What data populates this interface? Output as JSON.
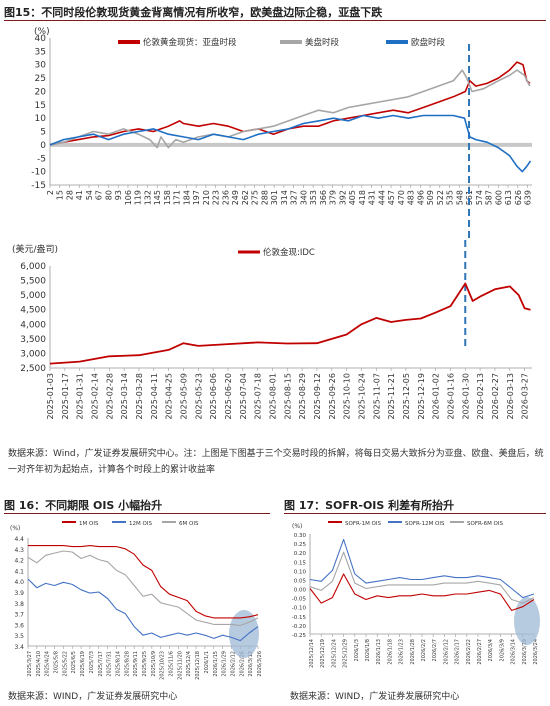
{
  "figure15": {
    "title": "图15：不同时段伦敦现货黄金背离情况有所收窄，欧美盘边际企稳，亚盘下跌",
    "source_line1": "数据来源：Wind，广发证券发展研究中心。注：上图是下图基于三个交易时段的拆解，将每日交易大致拆分为亚盘、欧盘、美盘后，统",
    "source_line2": "一对齐年初为起始点，计算各个时段上的累计收益率"
  },
  "figure16": {
    "title": "图 16：不同期限 OIS 小幅抬升",
    "source": "数据来源：WIND，广发证券发展研究中心"
  },
  "figure17": {
    "title": "图 17：SOFR-OIS 利差有所抬升",
    "source": "数据来源：WIND，广发证券发展研究中心"
  },
  "chart_data": [
    {
      "id": "cumulative-returns",
      "type": "line",
      "ylabel": "(%)",
      "ylim": [
        -15,
        40
      ],
      "yticks": [
        -15,
        -10,
        -5,
        0,
        5,
        10,
        15,
        20,
        25,
        30,
        35,
        40
      ],
      "x_ticks": [
        "2",
        "15",
        "28",
        "41",
        "54",
        "67",
        "80",
        "93",
        "106",
        "119",
        "132",
        "145",
        "158",
        "171",
        "184",
        "197",
        "210",
        "223",
        "236",
        "249",
        "262",
        "275",
        "288",
        "301",
        "314",
        "327",
        "340",
        "353",
        "366",
        "379",
        "392",
        "405",
        "418",
        "431",
        "444",
        "457",
        "470",
        "483",
        "496",
        "509",
        "522",
        "535",
        "548",
        "561",
        "574",
        "587",
        "600",
        "613",
        "626",
        "639"
      ],
      "x_range": [
        2,
        645
      ],
      "vline_x": 561,
      "legend": [
        "伦敦黄金现货：亚盘时段",
        "美盘时段",
        "欧盘时段"
      ],
      "series": [
        {
          "name": "伦敦黄金现货：亚盘时段",
          "color": "#c00000",
          "points": [
            [
              2,
              0
            ],
            [
              20,
              1
            ],
            [
              40,
              2
            ],
            [
              60,
              3
            ],
            [
              80,
              3.5
            ],
            [
              100,
              5
            ],
            [
              120,
              6
            ],
            [
              140,
              5
            ],
            [
              160,
              7
            ],
            [
              175,
              9
            ],
            [
              180,
              8
            ],
            [
              200,
              7
            ],
            [
              220,
              8
            ],
            [
              240,
              7
            ],
            [
              260,
              5
            ],
            [
              280,
              6
            ],
            [
              300,
              4
            ],
            [
              320,
              6
            ],
            [
              340,
              7
            ],
            [
              360,
              7
            ],
            [
              380,
              9
            ],
            [
              400,
              10
            ],
            [
              420,
              11
            ],
            [
              440,
              12
            ],
            [
              460,
              13
            ],
            [
              480,
              12
            ],
            [
              500,
              14
            ],
            [
              520,
              16
            ],
            [
              540,
              18
            ],
            [
              556,
              20
            ],
            [
              562,
              24
            ],
            [
              570,
              22
            ],
            [
              585,
              23
            ],
            [
              600,
              25
            ],
            [
              615,
              28
            ],
            [
              625,
              31
            ],
            [
              633,
              30
            ],
            [
              638,
              24
            ],
            [
              642,
              23
            ]
          ]
        },
        {
          "name": "美盘时段",
          "color": "#a6a6a6",
          "points": [
            [
              2,
              0
            ],
            [
              20,
              1
            ],
            [
              40,
              3
            ],
            [
              60,
              5
            ],
            [
              80,
              4
            ],
            [
              100,
              6
            ],
            [
              120,
              4
            ],
            [
              135,
              2
            ],
            [
              145,
              -1
            ],
            [
              150,
              3
            ],
            [
              160,
              -1
            ],
            [
              170,
              2
            ],
            [
              180,
              1
            ],
            [
              200,
              3
            ],
            [
              220,
              4
            ],
            [
              240,
              3
            ],
            [
              260,
              5
            ],
            [
              280,
              6
            ],
            [
              300,
              7
            ],
            [
              320,
              9
            ],
            [
              340,
              11
            ],
            [
              360,
              13
            ],
            [
              380,
              12
            ],
            [
              400,
              14
            ],
            [
              420,
              15
            ],
            [
              440,
              16
            ],
            [
              460,
              17
            ],
            [
              480,
              18
            ],
            [
              500,
              20
            ],
            [
              520,
              22
            ],
            [
              540,
              24
            ],
            [
              552,
              28
            ],
            [
              558,
              25
            ],
            [
              565,
              20
            ],
            [
              580,
              21
            ],
            [
              600,
              24
            ],
            [
              615,
              26
            ],
            [
              625,
              28
            ],
            [
              635,
              26
            ],
            [
              642,
              22
            ]
          ]
        },
        {
          "name": "欧盘时段",
          "color": "#1f6fc4",
          "points": [
            [
              2,
              0
            ],
            [
              20,
              2
            ],
            [
              40,
              3
            ],
            [
              60,
              4
            ],
            [
              80,
              2
            ],
            [
              100,
              4
            ],
            [
              120,
              5
            ],
            [
              140,
              6
            ],
            [
              160,
              4
            ],
            [
              180,
              3
            ],
            [
              200,
              2
            ],
            [
              220,
              4
            ],
            [
              240,
              3
            ],
            [
              260,
              2
            ],
            [
              280,
              4
            ],
            [
              300,
              5
            ],
            [
              320,
              6
            ],
            [
              340,
              8
            ],
            [
              360,
              9
            ],
            [
              380,
              10
            ],
            [
              400,
              9
            ],
            [
              420,
              11
            ],
            [
              440,
              10
            ],
            [
              460,
              11
            ],
            [
              480,
              10
            ],
            [
              500,
              11
            ],
            [
              520,
              11
            ],
            [
              540,
              11
            ],
            [
              555,
              10
            ],
            [
              562,
              3
            ],
            [
              570,
              2
            ],
            [
              585,
              1
            ],
            [
              600,
              -1
            ],
            [
              615,
              -4
            ],
            [
              625,
              -8
            ],
            [
              632,
              -10
            ],
            [
              638,
              -8
            ],
            [
              643,
              -6
            ]
          ]
        }
      ]
    },
    {
      "id": "london-gold-idc",
      "type": "line",
      "ylabel": "(美元/盎司)",
      "ylim": [
        2500,
        6000
      ],
      "yticks": [
        2500,
        3000,
        3500,
        4000,
        4500,
        5000,
        5500,
        6000
      ],
      "x_ticks": [
        "2025-01-03",
        "2025-01-17",
        "2025-01-31",
        "2025-02-14",
        "2025-02-28",
        "2025-03-14",
        "2025-03-28",
        "2025-04-11",
        "2025-04-25",
        "2025-05-09",
        "2025-05-23",
        "2025-06-06",
        "2025-06-20",
        "2025-07-04",
        "2025-07-18",
        "2025-08-01",
        "2025-08-15",
        "2025-08-29",
        "2025-09-12",
        "2025-09-26",
        "2025-10-10",
        "2025-10-24",
        "2025-11-07",
        "2025-11-21",
        "2025-12-05",
        "2025-12-19",
        "2026-01-02",
        "2026-01-16",
        "2026-01-30",
        "2026-02-13",
        "2026-02-27",
        "2026-03-13",
        "2026-03-27"
      ],
      "x_range": [
        0,
        32.5
      ],
      "vline_x": 28,
      "legend": [
        "伦敦金现:IDC"
      ],
      "series": [
        {
          "name": "伦敦金现:IDC",
          "color": "#c00000",
          "points": [
            [
              0,
              2650
            ],
            [
              2,
              2720
            ],
            [
              4,
              2900
            ],
            [
              6,
              2940
            ],
            [
              8,
              3120
            ],
            [
              9,
              3350
            ],
            [
              10,
              3260
            ],
            [
              12,
              3320
            ],
            [
              14,
              3380
            ],
            [
              16,
              3340
            ],
            [
              18,
              3350
            ],
            [
              20,
              3650
            ],
            [
              21,
              4000
            ],
            [
              22,
              4220
            ],
            [
              23,
              4080
            ],
            [
              24,
              4150
            ],
            [
              25,
              4200
            ],
            [
              26,
              4400
            ],
            [
              27,
              4620
            ],
            [
              28,
              5400
            ],
            [
              28.5,
              4800
            ],
            [
              29,
              4950
            ],
            [
              30,
              5200
            ],
            [
              31,
              5300
            ],
            [
              31.6,
              5000
            ],
            [
              32,
              4550
            ],
            [
              32.4,
              4500
            ]
          ]
        }
      ]
    },
    {
      "id": "ois",
      "type": "line",
      "ylabel": "(%)",
      "ylim": [
        3.4,
        4.4
      ],
      "yticks": [
        3.4,
        3.5,
        3.6,
        3.7,
        3.8,
        3.9,
        4.0,
        4.1,
        4.2,
        4.3,
        4.4
      ],
      "x_ticks": [
        "2025/3/27",
        "2025/4/10",
        "2025/4/24",
        "2025/5/8",
        "2025/5/22",
        "2025/6/5",
        "2025/6/19",
        "2025/7/3",
        "2025/7/17",
        "2025/7/31",
        "2025/8/14",
        "2025/8/28",
        "2025/9/11",
        "2025/9/25",
        "2025/10/9",
        "2025/10/23",
        "2025/11/6",
        "2025/11/20",
        "2025/12/4",
        "2025/12/18",
        "2026/1/1",
        "2026/1/15",
        "2026/1/29",
        "2026/2/12",
        "2026/2/26",
        "2026/3/12",
        "2026/3/26"
      ],
      "legend": [
        "1M OIS",
        "12M OIS",
        "6M OIS"
      ],
      "series": [
        {
          "name": "1M OIS",
          "color": "#c00000",
          "values": [
            4.33,
            4.33,
            4.33,
            4.33,
            4.33,
            4.32,
            4.32,
            4.33,
            4.32,
            4.32,
            4.32,
            4.3,
            4.25,
            4.15,
            4.1,
            3.95,
            3.88,
            3.85,
            3.82,
            3.72,
            3.68,
            3.66,
            3.66,
            3.66,
            3.66,
            3.67,
            3.69
          ]
        },
        {
          "name": "12M OIS",
          "color": "#4472c4",
          "values": [
            4.02,
            3.94,
            3.98,
            3.96,
            3.99,
            3.97,
            3.92,
            3.89,
            3.9,
            3.84,
            3.74,
            3.7,
            3.58,
            3.5,
            3.52,
            3.48,
            3.5,
            3.52,
            3.5,
            3.52,
            3.5,
            3.47,
            3.5,
            3.48,
            3.45,
            3.52,
            3.58
          ]
        },
        {
          "name": "6M OIS",
          "color": "#a6a6a6",
          "values": [
            4.22,
            4.17,
            4.24,
            4.26,
            4.28,
            4.27,
            4.21,
            4.24,
            4.2,
            4.18,
            4.1,
            4.06,
            3.96,
            3.86,
            3.88,
            3.8,
            3.78,
            3.76,
            3.7,
            3.64,
            3.62,
            3.6,
            3.6,
            3.6,
            3.59,
            3.62,
            3.66
          ]
        }
      ]
    },
    {
      "id": "sofr-ois",
      "type": "line",
      "ylabel": "(%)",
      "ylim": [
        -0.25,
        0.3
      ],
      "yticks": [
        -0.25,
        -0.2,
        -0.15,
        -0.1,
        -0.05,
        0,
        0.05,
        0.1,
        0.15,
        0.2,
        0.25,
        0.3
      ],
      "x_ticks": [
        "2025/12/14",
        "2025/12/19",
        "2025/12/24",
        "2025/12/29",
        "2026/1/3",
        "2026/1/8",
        "2026/1/13",
        "2026/1/18",
        "2026/1/23",
        "2026/1/28",
        "2026/2/2",
        "2026/2/7",
        "2026/2/12",
        "2026/2/17",
        "2026/2/22",
        "2026/2/27",
        "2026/3/4",
        "2026/3/9",
        "2026/3/14",
        "2026/3/19",
        "2026/3/24"
      ],
      "legend": [
        "SOFR-1M OIS",
        "SOFR-12M OIS",
        "SOFR-6M OIS"
      ],
      "series": [
        {
          "name": "SOFR-1M OIS",
          "color": "#c00000",
          "values": [
            0.0,
            -0.08,
            -0.05,
            0.08,
            -0.03,
            -0.06,
            -0.04,
            -0.05,
            -0.04,
            -0.04,
            -0.03,
            -0.04,
            -0.04,
            -0.03,
            -0.03,
            -0.02,
            -0.01,
            -0.03,
            -0.12,
            -0.1,
            -0.06
          ]
        },
        {
          "name": "SOFR-12M OIS",
          "color": "#4472c4",
          "values": [
            0.05,
            0.04,
            0.1,
            0.27,
            0.08,
            0.03,
            0.04,
            0.05,
            0.06,
            0.05,
            0.05,
            0.06,
            0.07,
            0.06,
            0.06,
            0.07,
            0.06,
            0.05,
            0.0,
            -0.05,
            -0.03
          ]
        },
        {
          "name": "SOFR-6M OIS",
          "color": "#a6a6a6",
          "values": [
            0.01,
            -0.01,
            0.04,
            0.2,
            0.03,
            0.0,
            0.01,
            0.02,
            0.02,
            0.02,
            0.02,
            0.02,
            0.03,
            0.03,
            0.03,
            0.04,
            0.03,
            0.02,
            -0.06,
            -0.08,
            -0.05
          ]
        }
      ]
    }
  ]
}
